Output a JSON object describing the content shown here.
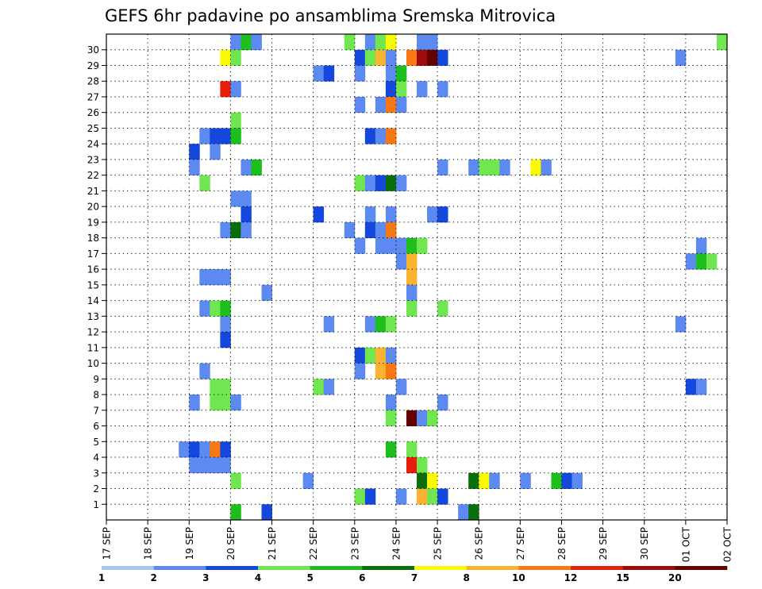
{
  "chart_data": {
    "type": "heatmap",
    "title": "GEFS 6hr padavine po ansamblima Sremska Mitrovica",
    "xlabel": "",
    "ylabel": "",
    "x_tick_labels": [
      "17 SEP",
      "18 SEP",
      "19 SEP",
      "20 SEP",
      "21 SEP",
      "22 SEP",
      "23 SEP",
      "24 SEP",
      "25 SEP",
      "26 SEP",
      "27 SEP",
      "28 SEP",
      "29 SEP",
      "30 SEP",
      "01 OCT",
      "02 OCT"
    ],
    "y_tick_labels": [
      "1",
      "2",
      "3",
      "4",
      "5",
      "6",
      "7",
      "8",
      "9",
      "10",
      "11",
      "12",
      "13",
      "14",
      "15",
      "16",
      "17",
      "18",
      "19",
      "20",
      "21",
      "22",
      "23",
      "24",
      "25",
      "26",
      "27",
      "28",
      "29",
      "30"
    ],
    "xlim": [
      "17 SEP 00Z",
      "02 OCT 00Z"
    ],
    "time_step_hours": 6,
    "ylim": [
      0,
      30
    ],
    "grid": true,
    "legend": "bottom",
    "colorbar": {
      "labels": [
        "1",
        "2",
        "3",
        "4",
        "5",
        "6",
        "7",
        "8",
        "10",
        "12",
        "15",
        "20"
      ],
      "colors": [
        "#a8c4f8",
        "#5c8af0",
        "#1448dc",
        "#70e650",
        "#1ebe1e",
        "#0a6e0a",
        "#fafa00",
        "#fab432",
        "#fa7814",
        "#e61e0a",
        "#a00a0a",
        "#640000"
      ]
    },
    "cells": [
      {
        "m": 30,
        "i": [
          [
            12,
            1
          ],
          [
            13,
            4
          ],
          [
            14,
            1
          ],
          [
            23,
            3
          ],
          [
            25,
            1
          ],
          [
            26,
            3
          ],
          [
            27,
            6
          ],
          [
            30,
            1
          ],
          [
            31,
            1
          ],
          [
            59,
            3
          ]
        ]
      },
      {
        "m": 29,
        "i": [
          [
            11,
            6
          ],
          [
            12,
            3
          ],
          [
            24,
            2
          ],
          [
            25,
            3
          ],
          [
            26,
            7
          ],
          [
            27,
            1
          ],
          [
            29,
            8
          ],
          [
            30,
            10
          ],
          [
            31,
            11
          ],
          [
            32,
            2
          ],
          [
            55,
            1
          ]
        ]
      },
      {
        "m": 28,
        "i": [
          [
            20,
            1
          ],
          [
            21,
            2
          ],
          [
            24,
            1
          ],
          [
            27,
            1
          ],
          [
            28,
            4
          ]
        ]
      },
      {
        "m": 27,
        "i": [
          [
            11,
            9
          ],
          [
            12,
            1
          ],
          [
            27,
            2
          ],
          [
            28,
            3
          ],
          [
            30,
            1
          ],
          [
            32,
            1
          ]
        ]
      },
      {
        "m": 26,
        "i": [
          [
            24,
            1
          ],
          [
            26,
            1
          ],
          [
            27,
            8
          ],
          [
            28,
            1
          ]
        ]
      },
      {
        "m": 25,
        "i": [
          [
            12,
            3
          ]
        ]
      },
      {
        "m": 24,
        "i": [
          [
            9,
            1
          ],
          [
            10,
            2
          ],
          [
            11,
            2
          ],
          [
            12,
            4
          ],
          [
            25,
            2
          ],
          [
            26,
            1
          ],
          [
            27,
            8
          ]
        ]
      },
      {
        "m": 23,
        "i": [
          [
            8,
            2
          ],
          [
            10,
            1
          ]
        ]
      },
      {
        "m": 22,
        "i": [
          [
            8,
            1
          ],
          [
            13,
            1
          ],
          [
            14,
            4
          ],
          [
            32,
            1
          ],
          [
            35,
            1
          ],
          [
            36,
            3
          ],
          [
            37,
            3
          ],
          [
            38,
            1
          ],
          [
            41,
            6
          ],
          [
            42,
            1
          ]
        ]
      },
      {
        "m": 21,
        "i": [
          [
            9,
            3
          ],
          [
            24,
            3
          ],
          [
            25,
            1
          ],
          [
            26,
            2
          ],
          [
            27,
            5
          ],
          [
            28,
            1
          ]
        ]
      },
      {
        "m": 20,
        "i": [
          [
            12,
            1
          ],
          [
            13,
            1
          ]
        ]
      },
      {
        "m": 19,
        "i": [
          [
            13,
            2
          ],
          [
            20,
            2
          ],
          [
            25,
            1
          ],
          [
            27,
            1
          ],
          [
            31,
            1
          ],
          [
            32,
            2
          ]
        ]
      },
      {
        "m": 18,
        "i": [
          [
            11,
            1
          ],
          [
            12,
            5
          ],
          [
            13,
            1
          ],
          [
            23,
            1
          ],
          [
            25,
            2
          ],
          [
            26,
            1
          ],
          [
            27,
            8
          ]
        ]
      },
      {
        "m": 17,
        "i": [
          [
            24,
            1
          ],
          [
            26,
            1
          ],
          [
            27,
            1
          ],
          [
            28,
            1
          ],
          [
            29,
            4
          ],
          [
            30,
            3
          ],
          [
            57,
            1
          ]
        ]
      },
      {
        "m": 16,
        "i": [
          [
            28,
            1
          ],
          [
            29,
            7
          ],
          [
            56,
            1
          ],
          [
            57,
            4
          ],
          [
            58,
            3
          ]
        ]
      },
      {
        "m": 15,
        "i": [
          [
            9,
            1
          ],
          [
            10,
            1
          ],
          [
            11,
            1
          ],
          [
            29,
            7
          ]
        ]
      },
      {
        "m": 14,
        "i": [
          [
            15,
            1
          ],
          [
            29,
            1
          ]
        ]
      },
      {
        "m": 13,
        "i": [
          [
            9,
            1
          ],
          [
            10,
            3
          ],
          [
            11,
            4
          ],
          [
            29,
            3
          ],
          [
            32,
            3
          ]
        ]
      },
      {
        "m": 12,
        "i": [
          [
            11,
            1
          ],
          [
            21,
            1
          ],
          [
            25,
            1
          ],
          [
            26,
            4
          ],
          [
            27,
            3
          ],
          [
            55,
            1
          ]
        ]
      },
      {
        "m": 11,
        "i": [
          [
            11,
            2
          ]
        ]
      },
      {
        "m": 10,
        "i": [
          [
            24,
            2
          ],
          [
            25,
            3
          ],
          [
            26,
            7
          ],
          [
            27,
            1
          ]
        ]
      },
      {
        "m": 9,
        "i": [
          [
            9,
            1
          ],
          [
            24,
            1
          ],
          [
            26,
            7
          ],
          [
            27,
            8
          ]
        ]
      },
      {
        "m": 8,
        "i": [
          [
            10,
            3
          ],
          [
            11,
            3
          ],
          [
            20,
            3
          ],
          [
            21,
            1
          ],
          [
            28,
            1
          ],
          [
            56,
            2
          ],
          [
            57,
            1
          ]
        ]
      },
      {
        "m": 7,
        "i": [
          [
            8,
            1
          ],
          [
            10,
            3
          ],
          [
            11,
            3
          ],
          [
            12,
            1
          ],
          [
            27,
            1
          ],
          [
            32,
            1
          ]
        ]
      },
      {
        "m": 6,
        "i": [
          [
            27,
            3
          ],
          [
            29,
            11
          ],
          [
            30,
            1
          ],
          [
            31,
            3
          ]
        ]
      },
      {
        "m": 4,
        "i": [
          [
            7,
            1
          ],
          [
            8,
            2
          ],
          [
            9,
            1
          ],
          [
            10,
            8
          ],
          [
            11,
            2
          ],
          [
            27,
            4
          ],
          [
            29,
            3
          ]
        ]
      },
      {
        "m": 3,
        "i": [
          [
            8,
            1
          ],
          [
            9,
            1
          ],
          [
            10,
            1
          ],
          [
            11,
            1
          ],
          [
            29,
            9
          ],
          [
            30,
            3
          ]
        ]
      },
      {
        "m": 2,
        "i": [
          [
            12,
            3
          ],
          [
            19,
            1
          ],
          [
            30,
            5
          ],
          [
            31,
            6
          ],
          [
            35,
            5
          ],
          [
            36,
            6
          ],
          [
            37,
            1
          ],
          [
            40,
            1
          ],
          [
            43,
            4
          ],
          [
            44,
            2
          ],
          [
            45,
            1
          ]
        ]
      },
      {
        "m": 1,
        "i": [
          [
            24,
            3
          ],
          [
            25,
            2
          ],
          [
            28,
            1
          ],
          [
            30,
            7
          ],
          [
            31,
            3
          ],
          [
            32,
            2
          ]
        ]
      },
      {
        "m": 0,
        "i": [
          [
            12,
            4
          ],
          [
            15,
            2
          ],
          [
            34,
            1
          ],
          [
            35,
            5
          ]
        ]
      }
    ]
  }
}
